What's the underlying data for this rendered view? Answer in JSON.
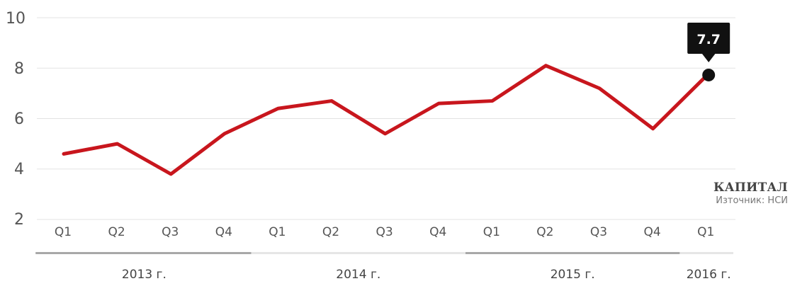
{
  "chart_data": {
    "type": "line",
    "categories": [
      "Q1",
      "Q2",
      "Q3",
      "Q4",
      "Q1",
      "Q2",
      "Q3",
      "Q4",
      "Q1",
      "Q2",
      "Q3",
      "Q4",
      "Q1"
    ],
    "values": [
      4.6,
      5.0,
      3.8,
      5.4,
      6.4,
      6.7,
      5.4,
      6.6,
      6.7,
      8.1,
      7.2,
      5.6,
      7.7
    ],
    "year_groups": [
      {
        "label": "2013 г.",
        "start": 0,
        "end": 3
      },
      {
        "label": "2014 г.",
        "start": 4,
        "end": 7
      },
      {
        "label": "2015 г.",
        "start": 8,
        "end": 11
      },
      {
        "label": "2016 г.",
        "start": 12,
        "end": 12
      }
    ],
    "yticks": [
      "10",
      "8",
      "6",
      "4",
      "2"
    ],
    "ylim": [
      2,
      10
    ],
    "grid": true,
    "line_color": "#c8161d",
    "callout": {
      "label": "7.7",
      "index": 12
    }
  },
  "branding": {
    "name": "КАПИТАЛ",
    "source": "Източник: НСИ"
  }
}
